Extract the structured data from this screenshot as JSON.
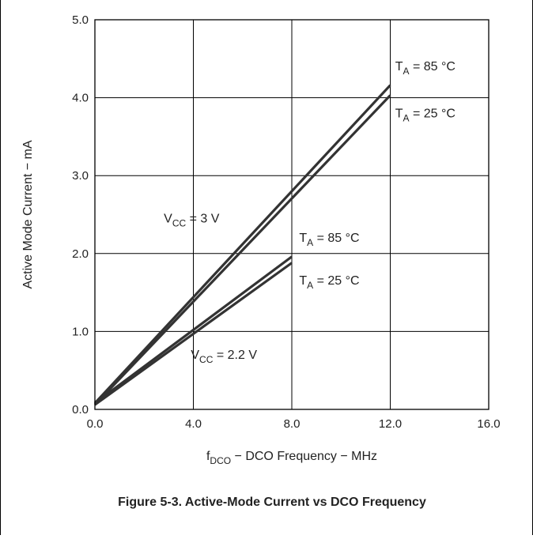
{
  "chart_data": {
    "type": "line",
    "xlabel": "f",
    "xlabel_sub": "DCO",
    "xlabel_rest": " − DCO Frequency − MHz",
    "ylabel": "Active Mode Current − mA",
    "xlim": [
      0,
      16
    ],
    "ylim": [
      0,
      5
    ],
    "x_ticks": [
      "0.0",
      "4.0",
      "8.0",
      "12.0",
      "16.0"
    ],
    "y_ticks": [
      "0.0",
      "1.0",
      "2.0",
      "3.0",
      "4.0",
      "5.0"
    ],
    "grid": true,
    "series": [
      {
        "x": [
          0,
          12
        ],
        "y": [
          0.08,
          4.16
        ]
      },
      {
        "x": [
          0,
          12
        ],
        "y": [
          0.06,
          4.03
        ]
      },
      {
        "x": [
          0,
          8
        ],
        "y": [
          0.08,
          1.96
        ]
      },
      {
        "x": [
          0,
          8
        ],
        "y": [
          0.06,
          1.88
        ]
      }
    ],
    "annotations": [
      {
        "id": "ta85-3v",
        "main": "T",
        "sub": "A",
        "rest": " = 85 °C",
        "x": 12.2,
        "y": 4.35
      },
      {
        "id": "ta25-3v",
        "main": "T",
        "sub": "A",
        "rest": " = 25 °C",
        "x": 12.2,
        "y": 3.75
      },
      {
        "id": "vcc-3v",
        "main": "V",
        "sub": "CC",
        "rest": " = 3 V",
        "x": 2.8,
        "y": 2.4
      },
      {
        "id": "ta85-22v",
        "main": "T",
        "sub": "A",
        "rest": " = 85 °C",
        "x": 8.3,
        "y": 2.15
      },
      {
        "id": "ta25-22v",
        "main": "T",
        "sub": "A",
        "rest": " = 25 °C",
        "x": 8.3,
        "y": 1.6
      },
      {
        "id": "vcc-22v",
        "main": "V",
        "sub": "CC",
        "rest": " = 2.2 V",
        "x": 3.9,
        "y": 0.65
      }
    ]
  },
  "caption": "Figure 5-3. Active-Mode Current vs DCO Frequency"
}
